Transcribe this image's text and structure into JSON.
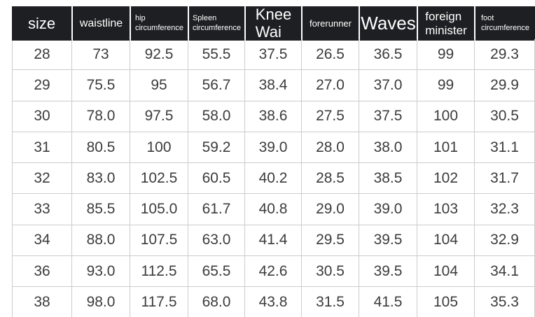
{
  "table": {
    "columns": [
      {
        "label": "size"
      },
      {
        "label": "waistline"
      },
      {
        "label": "hip\ncircumference"
      },
      {
        "label": "Spleen\ncircumference"
      },
      {
        "label": "Knee\nWai"
      },
      {
        "label": "forerunner"
      },
      {
        "label": "Waves"
      },
      {
        "label": "foreign\nminister"
      },
      {
        "label": "foot\ncircumference"
      }
    ],
    "rows": [
      [
        "28",
        "73",
        "92.5",
        "55.5",
        "37.5",
        "26.5",
        "36.5",
        "99",
        "29.3"
      ],
      [
        "29",
        "75.5",
        "95",
        "56.7",
        "38.4",
        "27.0",
        "37.0",
        "99",
        "29.9"
      ],
      [
        "30",
        "78.0",
        "97.5",
        "58.0",
        "38.6",
        "27.5",
        "37.5",
        "100",
        "30.5"
      ],
      [
        "31",
        "80.5",
        "100",
        "59.2",
        "39.0",
        "28.0",
        "38.0",
        "101",
        "31.1"
      ],
      [
        "32",
        "83.0",
        "102.5",
        "60.5",
        "40.2",
        "28.5",
        "38.5",
        "102",
        "31.7"
      ],
      [
        "33",
        "85.5",
        "105.0",
        "61.7",
        "40.8",
        "29.0",
        "39.0",
        "103",
        "32.3"
      ],
      [
        "34",
        "88.0",
        "107.5",
        "63.0",
        "41.4",
        "29.5",
        "39.5",
        "104",
        "32.9"
      ],
      [
        "36",
        "93.0",
        "112.5",
        "65.5",
        "42.6",
        "30.5",
        "39.5",
        "104",
        "34.1"
      ],
      [
        "38",
        "98.0",
        "117.5",
        "68.0",
        "43.8",
        "31.5",
        "41.5",
        "105",
        "35.3"
      ]
    ]
  },
  "chart_data": {
    "type": "table",
    "title": "",
    "columns": [
      "size",
      "waistline",
      "hip circumference",
      "Spleen circumference",
      "Knee Wai",
      "forerunner",
      "Waves",
      "foreign minister",
      "foot circumference"
    ],
    "rows": [
      [
        28,
        73,
        92.5,
        55.5,
        37.5,
        26.5,
        36.5,
        99,
        29.3
      ],
      [
        29,
        75.5,
        95,
        56.7,
        38.4,
        27.0,
        37.0,
        99,
        29.9
      ],
      [
        30,
        78.0,
        97.5,
        58.0,
        38.6,
        27.5,
        37.5,
        100,
        30.5
      ],
      [
        31,
        80.5,
        100,
        59.2,
        39.0,
        28.0,
        38.0,
        101,
        31.1
      ],
      [
        32,
        83.0,
        102.5,
        60.5,
        40.2,
        28.5,
        38.5,
        102,
        31.7
      ],
      [
        33,
        85.5,
        105.0,
        61.7,
        40.8,
        29.0,
        39.0,
        103,
        32.3
      ],
      [
        34,
        88.0,
        107.5,
        63.0,
        41.4,
        29.5,
        39.5,
        104,
        32.9
      ],
      [
        36,
        93.0,
        112.5,
        65.5,
        42.6,
        30.5,
        39.5,
        104,
        34.1
      ],
      [
        38,
        98.0,
        117.5,
        68.0,
        43.8,
        31.5,
        41.5,
        105,
        35.3
      ]
    ]
  },
  "colors": {
    "header_bg": "#1e1f22",
    "header_text": "#ffffff",
    "body_text": "#3b3c3e",
    "border": "#cccccc"
  }
}
